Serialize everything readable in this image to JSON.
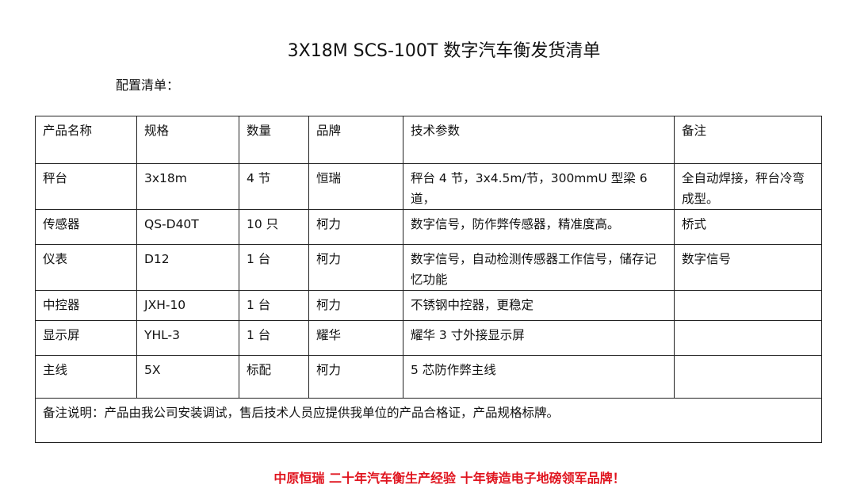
{
  "title": "3X18M SCS-100T 数字汽车衡发货清单",
  "subtitle": "配置清单：",
  "table": {
    "headers": [
      "产品名称",
      "规格",
      "数量",
      "品牌",
      "技术参数",
      "备注"
    ],
    "rows": [
      [
        "秤台",
        "3x18m",
        "4 节",
        "恒瑞",
        "秤台 4 节，3x4.5m/节，300mmU 型梁 6 道，",
        "全自动焊接，秤台冷弯成型。"
      ],
      [
        "传感器",
        "QS-D40T",
        "10 只",
        "柯力",
        "数字信号，防作弊传感器，精准度高。",
        "桥式"
      ],
      [
        "仪表",
        "D12",
        "1 台",
        "柯力",
        "数字信号，自动检测传感器工作信号，储存记忆功能",
        "数字信号"
      ],
      [
        "中控器",
        "JXH-10",
        "1 台",
        "柯力",
        "不锈钢中控器，更稳定",
        ""
      ],
      [
        "显示屏",
        "YHL-3",
        "1 台",
        "耀华",
        "耀华 3 寸外接显示屏",
        ""
      ],
      [
        "主线",
        "5X",
        "标配",
        "柯力",
        "5 芯防作弊主线",
        ""
      ]
    ],
    "note": "备注说明：产品由我公司安装调试，售后技术人员应提供我单位的产品合格证，产品规格标牌。"
  },
  "footer": "中原恒瑞 二十年汽车衡生产经验 十年铸造电子地磅领军品牌！",
  "colors": {
    "footer": "#e0141e",
    "border": "#222222"
  }
}
